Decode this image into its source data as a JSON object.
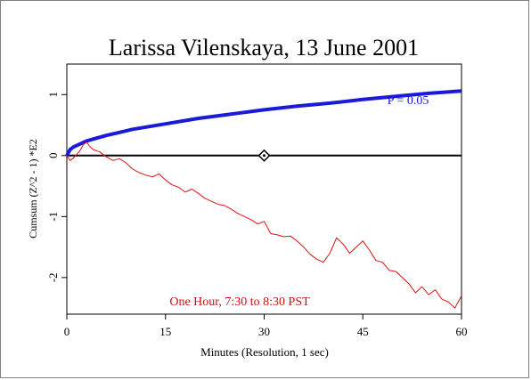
{
  "chart_data": {
    "type": "line",
    "title": "Larissa Vilenskaya, 13 June 2001",
    "xlabel": "Minutes (Resolution, 1 sec)",
    "ylabel": "Cumsum (Z^2 - 1)  *E2",
    "xlim": [
      0,
      60
    ],
    "ylim": [
      -2.6,
      1.5
    ],
    "x_ticks": [
      0,
      15,
      30,
      45,
      60
    ],
    "y_ticks": [
      -2,
      -1,
      0,
      1
    ],
    "grid": false,
    "legend": "none",
    "annotations": [
      {
        "text": "P = 0.05",
        "color": "#1818d0"
      },
      {
        "text": "One Hour, 7:30 to 8:30 PST",
        "color": "#d01010"
      }
    ],
    "marker": {
      "x": 30,
      "y": 0,
      "shape": "diamond"
    },
    "series": [
      {
        "role": "p05-envelope",
        "color": "#1a1ad8",
        "x": [
          0,
          0.5,
          1,
          2,
          3,
          4,
          6,
          8,
          10,
          15,
          20,
          25,
          30,
          35,
          40,
          45,
          50,
          55,
          60
        ],
        "y": [
          0,
          0.1,
          0.14,
          0.19,
          0.24,
          0.27,
          0.33,
          0.38,
          0.43,
          0.52,
          0.61,
          0.68,
          0.75,
          0.81,
          0.86,
          0.92,
          0.97,
          1.02,
          1.06
        ]
      },
      {
        "role": "cumulative-deviation",
        "color": "#e01010",
        "x": [
          0,
          0.5,
          1,
          1.5,
          2,
          2.5,
          3,
          3.5,
          4,
          5,
          6,
          7,
          8,
          9,
          10,
          11,
          12,
          13,
          14,
          15,
          16,
          17,
          18,
          19,
          20,
          21,
          22,
          23,
          24,
          25,
          26,
          27,
          28,
          29,
          30,
          31,
          32,
          33,
          34,
          35,
          36,
          37,
          38,
          39,
          40,
          41,
          42,
          43,
          44,
          45,
          46,
          47,
          48,
          49,
          50,
          51,
          52,
          53,
          54,
          55,
          56,
          57,
          58,
          59,
          60
        ],
        "y": [
          0,
          -0.08,
          -0.04,
          0.02,
          0.08,
          0.18,
          0.22,
          0.15,
          0.1,
          0.06,
          -0.02,
          -0.08,
          -0.05,
          -0.12,
          -0.22,
          -0.28,
          -0.32,
          -0.35,
          -0.3,
          -0.4,
          -0.48,
          -0.52,
          -0.6,
          -0.55,
          -0.62,
          -0.7,
          -0.75,
          -0.8,
          -0.82,
          -0.88,
          -0.95,
          -1.0,
          -1.05,
          -1.12,
          -1.08,
          -1.28,
          -1.3,
          -1.33,
          -1.32,
          -1.4,
          -1.5,
          -1.62,
          -1.7,
          -1.75,
          -1.6,
          -1.35,
          -1.45,
          -1.6,
          -1.5,
          -1.4,
          -1.55,
          -1.72,
          -1.75,
          -1.88,
          -1.9,
          -2.0,
          -2.1,
          -2.25,
          -2.15,
          -2.28,
          -2.2,
          -2.35,
          -2.4,
          -2.5,
          -2.3
        ]
      }
    ]
  }
}
